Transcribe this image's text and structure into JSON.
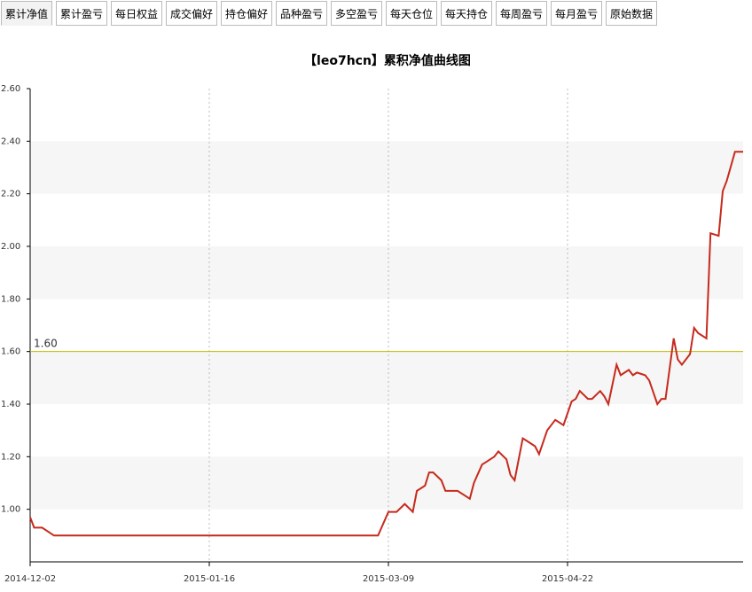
{
  "tabs": [
    "累计净值",
    "累计盈亏",
    "每日权益",
    "成交偏好",
    "持仓偏好",
    "品种盈亏",
    "多空盈亏",
    "每天仓位",
    "每天持仓",
    "每周盈亏",
    "每月盈亏",
    "原始数据"
  ],
  "chart_data": {
    "type": "line",
    "title": "【leo7hcn】累积净值曲线图",
    "x": [
      "2014-12-02",
      "2014-12-03",
      "2014-12-05",
      "2014-12-08",
      "2015-03-06",
      "2015-03-09",
      "2015-03-10",
      "2015-03-11",
      "2015-03-13",
      "2015-03-15",
      "2015-03-16",
      "2015-03-18",
      "2015-03-19",
      "2015-03-20",
      "2015-03-22",
      "2015-03-23",
      "2015-03-25",
      "2015-03-26",
      "2015-03-28",
      "2015-03-29",
      "2015-03-30",
      "2015-04-01",
      "2015-04-02",
      "2015-04-04",
      "2015-04-05",
      "2015-04-07",
      "2015-04-08",
      "2015-04-09",
      "2015-04-11",
      "2015-04-12",
      "2015-04-14",
      "2015-04-15",
      "2015-04-17",
      "2015-04-18",
      "2015-04-19",
      "2015-04-21",
      "2015-04-23",
      "2015-04-24",
      "2015-04-25",
      "2015-04-27",
      "2015-04-28",
      "2015-04-30",
      "2015-05-01",
      "2015-05-02",
      "2015-05-04",
      "2015-05-05",
      "2015-05-07",
      "2015-05-08",
      "2015-05-09",
      "2015-05-11",
      "2015-05-12",
      "2015-05-14",
      "2015-05-15",
      "2015-05-16",
      "2015-05-18",
      "2015-05-19",
      "2015-05-20",
      "2015-05-22",
      "2015-05-23",
      "2015-05-24",
      "2015-05-26",
      "2015-05-27",
      "2015-05-29",
      "2015-05-30",
      "2015-05-31",
      "2015-06-02",
      "2015-06-04"
    ],
    "series": [
      {
        "name": "累积净值",
        "color": "#c62a1c",
        "values": [
          0.97,
          0.93,
          0.93,
          0.9,
          0.9,
          0.99,
          0.99,
          0.99,
          1.02,
          0.99,
          1.07,
          1.09,
          1.14,
          1.14,
          1.11,
          1.07,
          1.07,
          1.07,
          1.05,
          1.04,
          1.1,
          1.17,
          1.18,
          1.2,
          1.22,
          1.19,
          1.13,
          1.11,
          1.27,
          1.26,
          1.24,
          1.21,
          1.3,
          1.32,
          1.34,
          1.32,
          1.41,
          1.42,
          1.45,
          1.42,
          1.42,
          1.45,
          1.43,
          1.4,
          1.55,
          1.51,
          1.53,
          1.51,
          1.52,
          1.51,
          1.49,
          1.4,
          1.42,
          1.42,
          1.65,
          1.57,
          1.55,
          1.59,
          1.69,
          1.67,
          1.65,
          2.05,
          2.04,
          2.21,
          2.25,
          2.36,
          2.36
        ]
      }
    ],
    "xlim": [
      "2014-12-02",
      "2015-06-04"
    ],
    "xticks": [
      "2014-12-02",
      "2015-01-16",
      "2015-03-09",
      "2015-04-22"
    ],
    "ylim": [
      0.8,
      2.6
    ],
    "yticks": [
      {
        "value": 1.0,
        "label": "1.00"
      },
      {
        "value": 1.2,
        "label": "1.20"
      },
      {
        "value": 1.4,
        "label": "1.40"
      },
      {
        "value": 1.6,
        "label": "1.60"
      },
      {
        "value": 1.8,
        "label": "1.80"
      },
      {
        "value": 2.0,
        "label": "2.00"
      },
      {
        "value": 2.2,
        "label": "2.20"
      },
      {
        "value": 2.4,
        "label": "2.40"
      },
      {
        "value": 2.6,
        "label": "2.60"
      }
    ],
    "reference_line": {
      "value": 1.6,
      "label": "1.60",
      "color": "#c8b800"
    },
    "bands": true,
    "band_color": "#f6f6f6",
    "grid": true
  }
}
